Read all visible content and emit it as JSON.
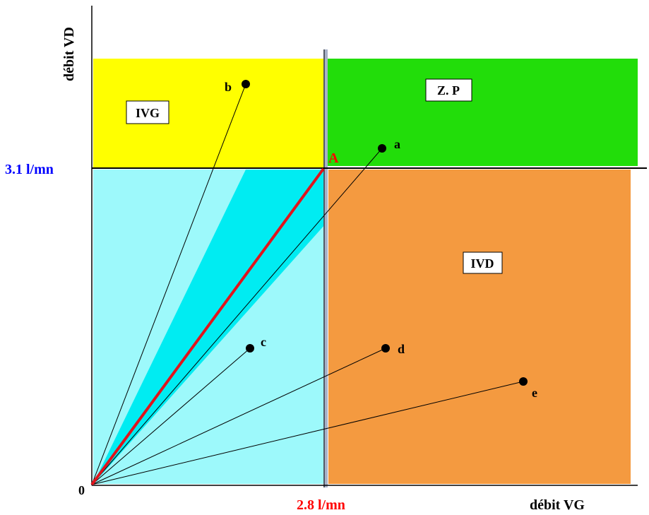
{
  "axes": {
    "y_label": "débit VD",
    "x_label": "débit VG",
    "origin_label": "0",
    "y_threshold_label": "3.1 l/mn",
    "x_threshold_label": "2.8 l/mn"
  },
  "thresholds": {
    "x": 2.8,
    "y": 3.1
  },
  "zones": {
    "ivg": {
      "label": "IVG",
      "color": "#ffff00"
    },
    "zp": {
      "label": "Z. P",
      "color": "#22dd0a"
    },
    "ivd": {
      "label": "IVD",
      "color": "#f49a40"
    },
    "low": {
      "color": "#9df9fb"
    },
    "wedge": {
      "color": "#00ecf2"
    }
  },
  "point_a_label": "A",
  "diagonal_color": "#e0141c",
  "threshold_label_colors": {
    "y": "#0000ff",
    "x": "#ff0000"
  },
  "points": [
    {
      "label": "a"
    },
    {
      "label": "b"
    },
    {
      "label": "c"
    },
    {
      "label": "d"
    },
    {
      "label": "e"
    }
  ]
}
